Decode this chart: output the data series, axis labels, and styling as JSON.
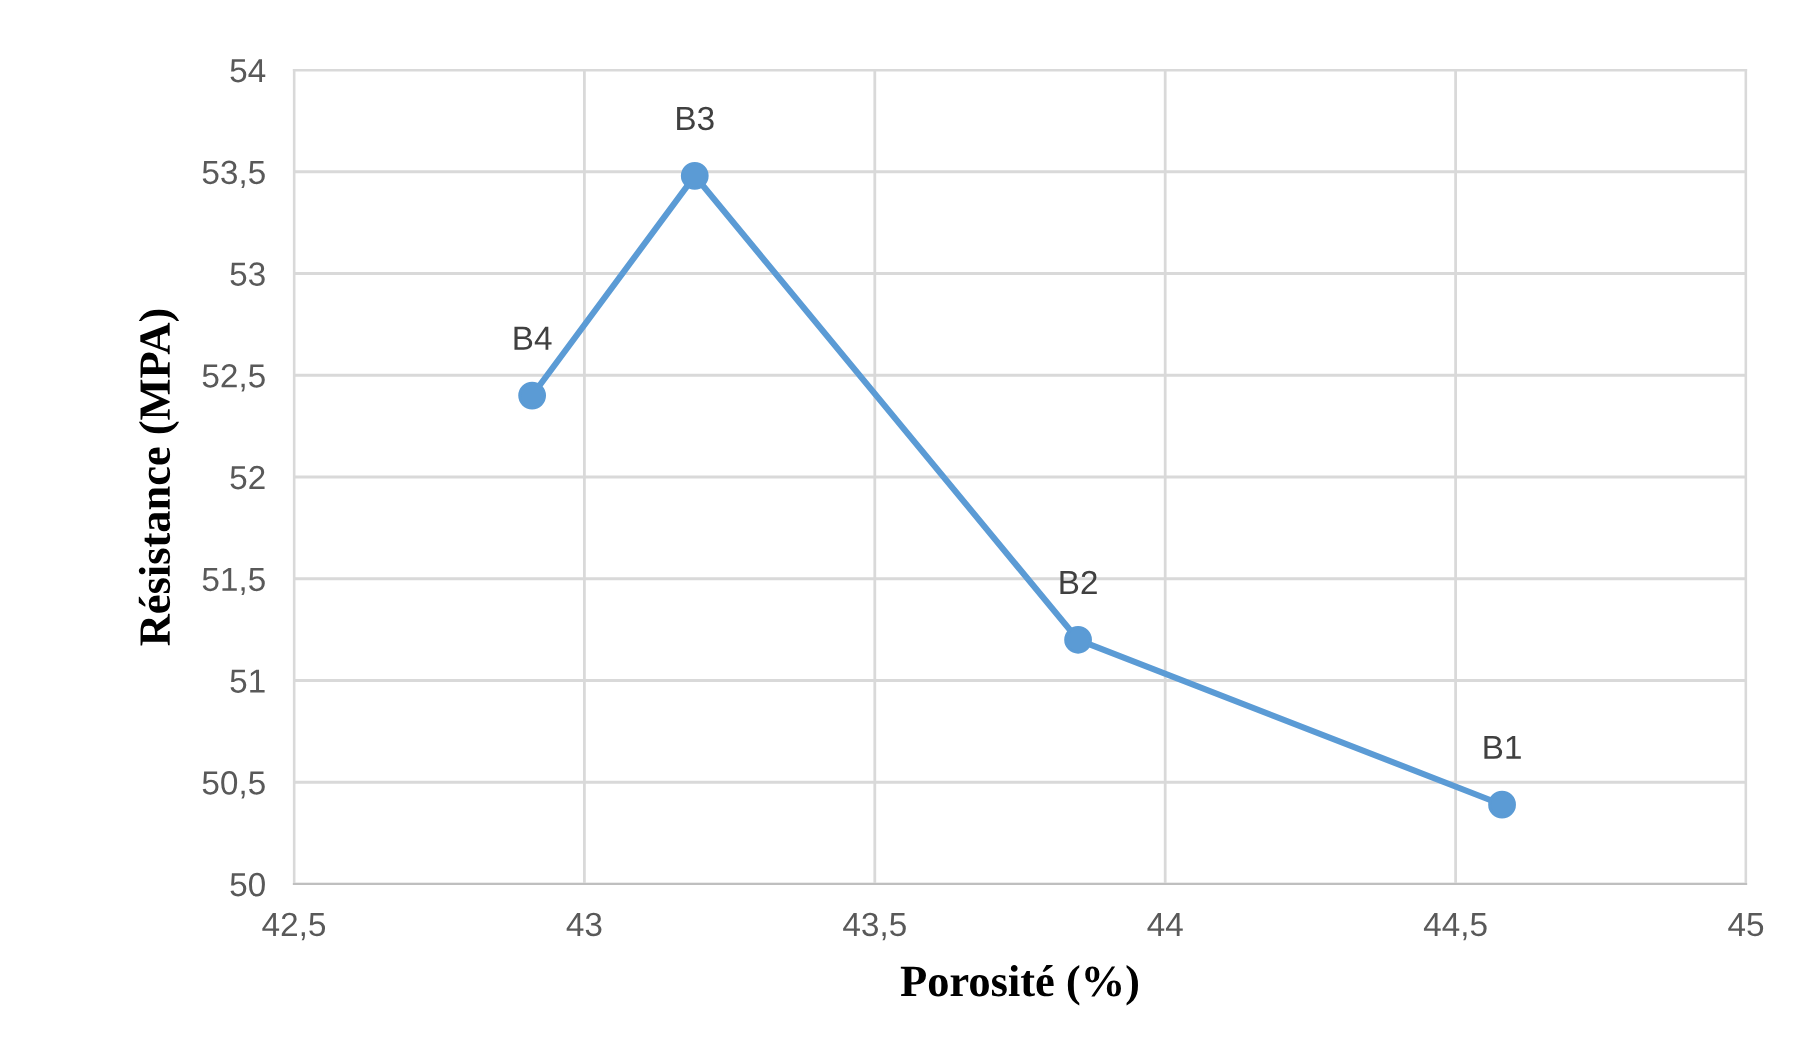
{
  "chart_data": {
    "type": "line",
    "xlabel": "Porosité (%)",
    "ylabel": "Résistance (MPA)",
    "x": [
      42.91,
      43.19,
      43.85,
      44.58
    ],
    "series": [
      {
        "color": "#5b9bd5",
        "values": [
          52.4,
          53.48,
          51.2,
          50.39
        ]
      }
    ],
    "marker": "circle",
    "line_style": "solid",
    "grid": true,
    "legend": false,
    "xlim": [
      42.5,
      45
    ],
    "ylim": [
      50,
      54
    ],
    "xticks": [
      {
        "value": 42.5,
        "label": "42,5"
      },
      43,
      {
        "value": 43.5,
        "label": "43,5"
      },
      44,
      {
        "value": 44.5,
        "label": "44,5"
      },
      45
    ],
    "yticks": [
      50,
      {
        "value": 50.5,
        "label": "50,5"
      },
      51,
      {
        "value": 51.5,
        "label": "51,5"
      },
      52,
      {
        "value": 52.5,
        "label": "52,5"
      },
      53,
      {
        "value": 53.5,
        "label": "53,5"
      },
      54
    ],
    "annotations": [
      {
        "text": "B4",
        "x": 42.91,
        "y": 52.4
      },
      {
        "text": "B3",
        "x": 43.19,
        "y": 53.48
      },
      {
        "text": "B2",
        "x": 43.85,
        "y": 51.2
      },
      {
        "text": "B1",
        "x": 44.58,
        "y": 50.39
      }
    ]
  }
}
